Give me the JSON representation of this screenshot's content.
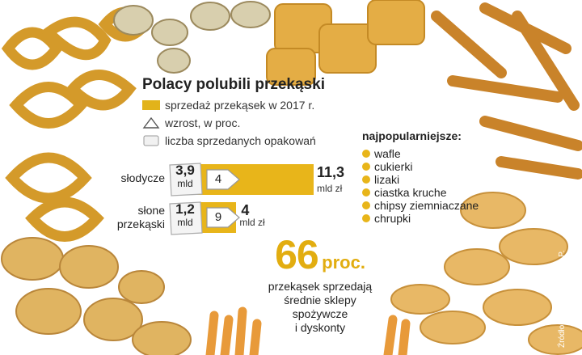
{
  "title": "Polacy polubili przekąski",
  "legend": {
    "sales": "sprzedaż przekąsek w 2017 r.",
    "growth": "wzrost, w proc.",
    "packages": "liczba sprzedanych opakowań"
  },
  "colors": {
    "accent": "#e8b51a",
    "accent_dark": "#e2ad10"
  },
  "chart_data": {
    "type": "bar",
    "title": "Polacy polubili przekąski",
    "categories": [
      "słodycze",
      "słone przekąski"
    ],
    "category_lines": [
      [
        "słodycze"
      ],
      [
        "słone",
        "przekąski"
      ]
    ],
    "series": [
      {
        "name": "sprzedaż przekąsek w 2017 r.",
        "values": [
          11.3,
          4
        ],
        "labels": [
          "11,3",
          "4"
        ],
        "unit": "mld zł"
      },
      {
        "name": "wzrost, w proc.",
        "values": [
          4,
          9
        ],
        "labels": [
          "4",
          "9"
        ]
      },
      {
        "name": "liczba sprzedanych opakowań",
        "values": [
          3.9,
          1.2
        ],
        "labels": [
          "3,9",
          "1,2"
        ],
        "unit": "mld"
      }
    ],
    "xlim": [
      0,
      11.3
    ]
  },
  "popular": {
    "heading": "najpopularniejsze:",
    "items": [
      "wafle",
      "cukierki",
      "lizaki",
      "ciastka kruche",
      "chipsy ziemniaczane",
      "chrupki"
    ]
  },
  "highlight": {
    "value": "66",
    "unit": "proc.",
    "text_lines": [
      "przekąsek sprzedają",
      "średnie sklepy",
      "spożywcze",
      "i dyskonty"
    ]
  },
  "source": "Źródło: Nielsen, oprac. A.P."
}
